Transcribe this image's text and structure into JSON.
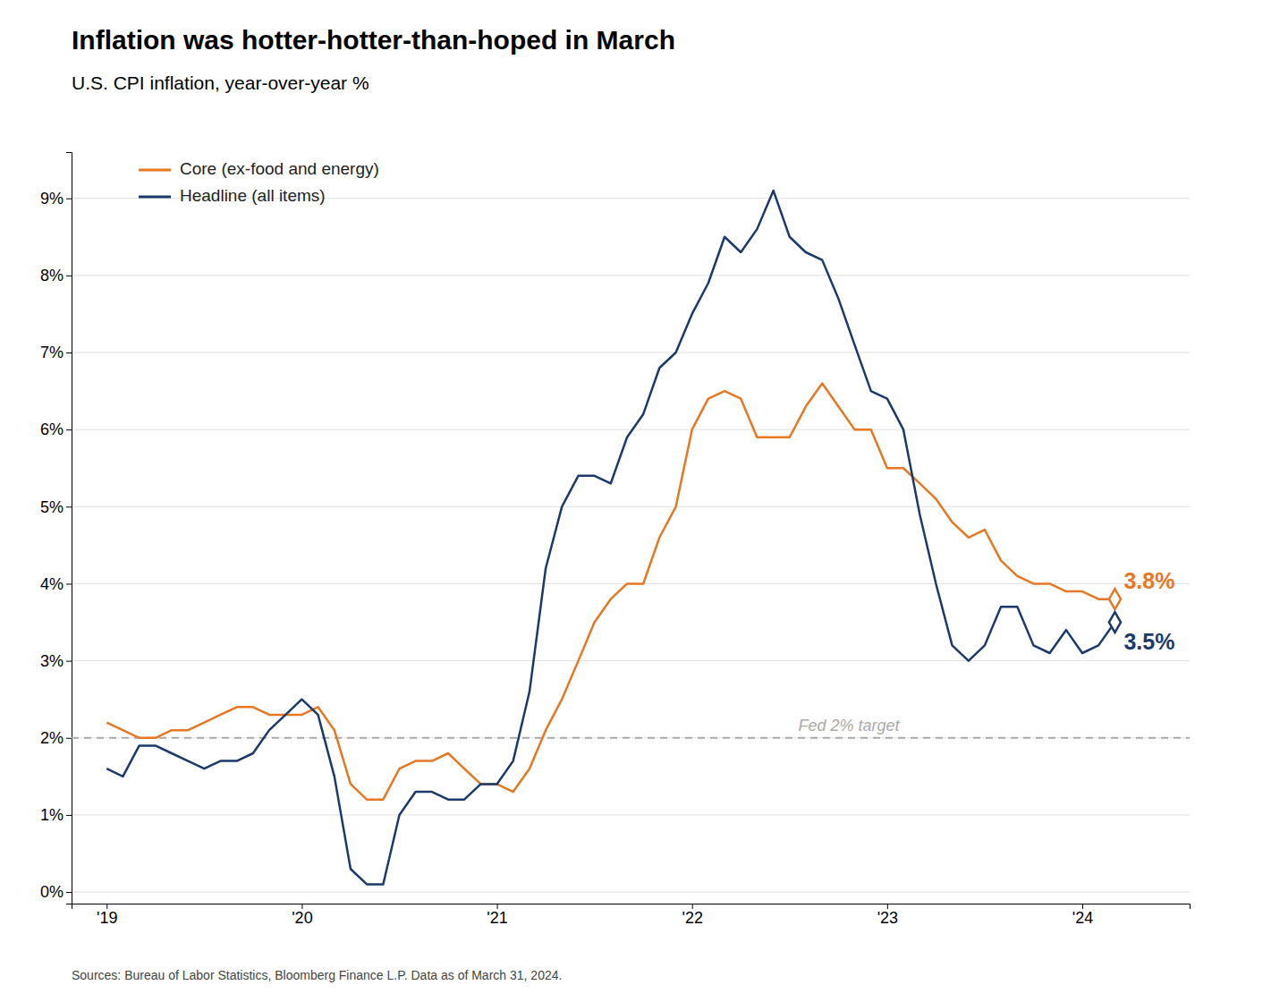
{
  "chart_data": {
    "type": "line",
    "title": "Inflation was hotter-hotter-than-hoped in March",
    "subtitle": "U.S. CPI inflation, year-over-year %",
    "source": "Sources: Bureau of Labor Statistics, Bloomberg Finance L.P. Data as of March 31, 2024.",
    "x": [
      2019.0,
      2019.083,
      2019.167,
      2019.25,
      2019.333,
      2019.417,
      2019.5,
      2019.583,
      2019.667,
      2019.75,
      2019.833,
      2019.917,
      2020.0,
      2020.083,
      2020.167,
      2020.25,
      2020.333,
      2020.417,
      2020.5,
      2020.583,
      2020.667,
      2020.75,
      2020.833,
      2020.917,
      2021.0,
      2021.083,
      2021.167,
      2021.25,
      2021.333,
      2021.417,
      2021.5,
      2021.583,
      2021.667,
      2021.75,
      2021.833,
      2021.917,
      2022.0,
      2022.083,
      2022.167,
      2022.25,
      2022.333,
      2022.417,
      2022.5,
      2022.583,
      2022.667,
      2022.75,
      2022.833,
      2022.917,
      2023.0,
      2023.083,
      2023.167,
      2023.25,
      2023.333,
      2023.417,
      2023.5,
      2023.583,
      2023.667,
      2023.75,
      2023.833,
      2023.917,
      2024.0,
      2024.083,
      2024.167
    ],
    "series": [
      {
        "name": "Core (ex-food and energy)",
        "color": "#E87722",
        "values": [
          2.2,
          2.1,
          2.0,
          2.0,
          2.1,
          2.1,
          2.2,
          2.3,
          2.4,
          2.4,
          2.3,
          2.3,
          2.3,
          2.4,
          2.1,
          1.4,
          1.2,
          1.2,
          1.6,
          1.7,
          1.7,
          1.8,
          1.6,
          1.4,
          1.4,
          1.3,
          1.6,
          2.1,
          2.5,
          3.0,
          3.5,
          3.8,
          4.0,
          4.0,
          4.6,
          5.0,
          6.0,
          6.4,
          6.5,
          6.4,
          5.9,
          5.9,
          5.9,
          6.3,
          6.6,
          6.3,
          6.0,
          6.0,
          5.5,
          5.5,
          5.3,
          5.1,
          4.8,
          4.6,
          4.7,
          4.3,
          4.1,
          4.0,
          4.0,
          3.9,
          3.9,
          3.8,
          3.8
        ]
      },
      {
        "name": "Headline (all items)",
        "color": "#1B3A6B",
        "values": [
          1.6,
          1.5,
          1.9,
          1.9,
          1.8,
          1.7,
          1.6,
          1.7,
          1.7,
          1.8,
          2.1,
          2.3,
          2.5,
          2.3,
          1.5,
          0.3,
          0.1,
          0.1,
          1.0,
          1.3,
          1.3,
          1.2,
          1.2,
          1.4,
          1.4,
          1.7,
          2.6,
          4.2,
          5.0,
          5.4,
          5.4,
          5.3,
          5.9,
          6.2,
          6.8,
          7.0,
          7.5,
          7.9,
          8.5,
          8.3,
          8.6,
          9.1,
          8.5,
          8.3,
          8.2,
          7.7,
          7.1,
          6.5,
          6.4,
          6.0,
          4.9,
          4.0,
          3.2,
          3.0,
          3.2,
          3.7,
          3.7,
          3.2,
          3.1,
          3.4,
          3.1,
          3.2,
          3.5
        ]
      }
    ],
    "xlim": [
      2018.82,
      2024.55
    ],
    "xticks": [
      {
        "value": 2019.0,
        "label": "'19"
      },
      {
        "value": 2020.0,
        "label": "'20"
      },
      {
        "value": 2021.0,
        "label": "'21"
      },
      {
        "value": 2022.0,
        "label": "'22"
      },
      {
        "value": 2023.0,
        "label": "'23"
      },
      {
        "value": 2024.0,
        "label": "'24"
      }
    ],
    "ylim": [
      -0.15,
      9.6
    ],
    "yticks": [
      {
        "value": 0,
        "label": "0%"
      },
      {
        "value": 1,
        "label": "1%"
      },
      {
        "value": 2,
        "label": "2%"
      },
      {
        "value": 3,
        "label": "3%"
      },
      {
        "value": 4,
        "label": "4%"
      },
      {
        "value": 5,
        "label": "5%"
      },
      {
        "value": 6,
        "label": "6%"
      },
      {
        "value": 7,
        "label": "7%"
      },
      {
        "value": 8,
        "label": "8%"
      },
      {
        "value": 9,
        "label": "9%"
      }
    ],
    "grid": true,
    "legend": "upper left",
    "annotations": [
      {
        "text": "3.8%",
        "x": 2024.167,
        "y": 3.8,
        "color": "#E87722"
      },
      {
        "text": "3.5%",
        "x": 2024.167,
        "y": 3.5,
        "color": "#1B3A6B"
      },
      {
        "text": "Fed 2% target",
        "y": 2.0,
        "color": "#aaaaaa",
        "line_style": "dashed"
      }
    ]
  }
}
